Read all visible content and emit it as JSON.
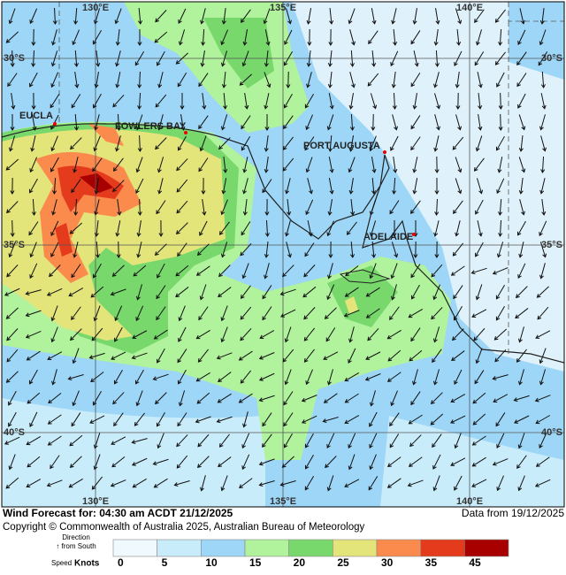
{
  "map": {
    "grid_labels": {
      "top": [
        "130°E",
        "135°E",
        "140°E"
      ],
      "bottom": [
        "130°E",
        "135°E",
        "140°E"
      ],
      "left": [
        "30°S",
        "35°S",
        "40°S"
      ],
      "right": [
        "30°S",
        "35°S",
        "40°S"
      ]
    },
    "places": [
      "EUCLA",
      "FOWLERS BAY",
      "PORT AUGUSTA",
      "ADELAIDE"
    ]
  },
  "footer": {
    "title": "Wind Forecast for: 04:30 am ACDT 21/12/2025",
    "data_from": "Data from 19/12/2025",
    "copyright": "Copyright © Commonwealth of Australia 2025, Australian Bureau of Meteorology"
  },
  "legend": {
    "direction_label": "Direction",
    "direction_note": "↑ from South",
    "speed_label": "Speed",
    "units": "Knots",
    "colors": [
      "#f0f9fe",
      "#c9ecfb",
      "#9dd6f7",
      "#b1f29c",
      "#78d86c",
      "#e3e57a",
      "#fb8a4d",
      "#e53b1d",
      "#a80000"
    ],
    "ticks": [
      0,
      5,
      10,
      15,
      20,
      25,
      30,
      35,
      45
    ]
  }
}
